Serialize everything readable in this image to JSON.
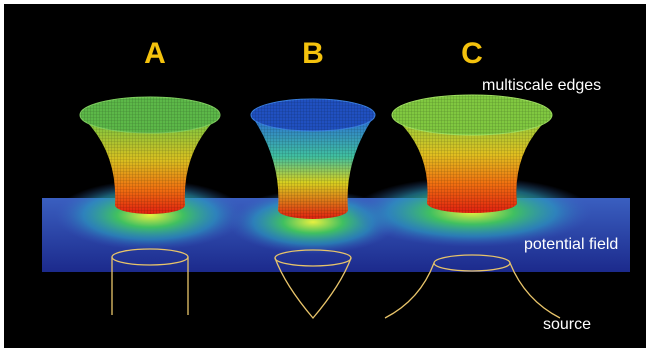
{
  "labels": {
    "a": "A",
    "b": "B",
    "c": "C"
  },
  "annotations": {
    "edges": "multiscale edges",
    "field": "potential field",
    "source": "source"
  }
}
